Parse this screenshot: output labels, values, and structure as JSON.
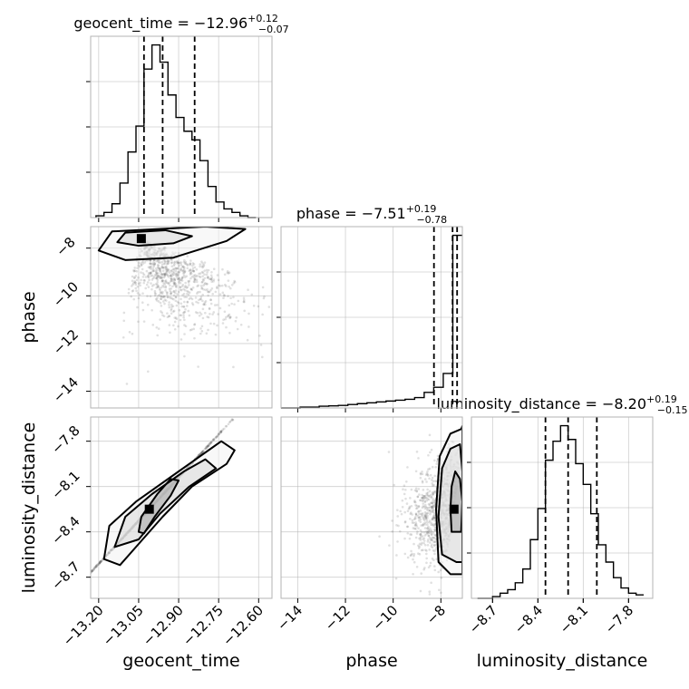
{
  "chart_data": {
    "type": "corner",
    "parameters": [
      {
        "name": "geocent_time",
        "title": {
          "prefix": "geocent_time = ",
          "value": "−12.96",
          "upper": "+0.12",
          "lower": "−0.07"
        },
        "range": [
          -13.23,
          -12.55
        ],
        "ticks": [
          -13.2,
          -13.05,
          -12.9,
          -12.75,
          -12.6
        ],
        "tick_labels": [
          "−13.20",
          "−13.05",
          "−12.90",
          "−12.75",
          "−12.60"
        ],
        "quantiles": [
          -13.03,
          -12.96,
          -12.84
        ],
        "hist": {
          "edges": [
            -13.21,
            -13.18,
            -13.15,
            -13.12,
            -13.09,
            -13.06,
            -13.03,
            -13.0,
            -12.97,
            -12.94,
            -12.91,
            -12.88,
            -12.85,
            -12.82,
            -12.79,
            -12.76,
            -12.73,
            -12.7,
            -12.67,
            -12.64,
            -12.61
          ],
          "heights": [
            0.01,
            0.03,
            0.08,
            0.2,
            0.38,
            0.53,
            0.86,
            1.0,
            0.9,
            0.71,
            0.58,
            0.5,
            0.45,
            0.33,
            0.18,
            0.09,
            0.05,
            0.03,
            0.01,
            0.0
          ]
        }
      },
      {
        "name": "phase",
        "title": {
          "prefix": "phase = ",
          "value": "−7.51",
          "upper": "+0.19",
          "lower": "−0.78"
        },
        "range": [
          -14.7,
          -7.1
        ],
        "ticks": [
          -14,
          -12,
          -10,
          -8
        ],
        "tick_labels": [
          "−14",
          "−12",
          "−10",
          "−8"
        ],
        "quantiles": [
          -8.29,
          -7.51,
          -7.32
        ],
        "hist": {
          "edges": [
            -14.7,
            -14.3,
            -13.9,
            -13.5,
            -13.1,
            -12.7,
            -12.3,
            -11.9,
            -11.5,
            -11.1,
            -10.7,
            -10.3,
            -9.9,
            -9.5,
            -9.1,
            -8.7,
            -8.3,
            -7.9,
            -7.5,
            -7.1
          ],
          "heights": [
            0.0,
            0.0,
            0.005,
            0.005,
            0.01,
            0.012,
            0.015,
            0.02,
            0.025,
            0.03,
            0.035,
            0.04,
            0.045,
            0.05,
            0.06,
            0.09,
            0.12,
            0.2,
            1.0
          ]
        }
      },
      {
        "name": "luminosity_distance",
        "title": {
          "prefix": "luminosity_distance = ",
          "value": "−8.20",
          "upper": "+0.19",
          "lower": "−0.15"
        },
        "range": [
          -8.84,
          -7.64
        ],
        "ticks": [
          -8.7,
          -8.4,
          -8.1,
          -7.8
        ],
        "tick_labels": [
          "−8.7",
          "−8.4",
          "−8.1",
          "−7.8"
        ],
        "quantiles": [
          -8.35,
          -8.2,
          -8.01
        ],
        "hist": {
          "edges": [
            -8.8,
            -8.75,
            -8.7,
            -8.65,
            -8.6,
            -8.55,
            -8.5,
            -8.45,
            -8.4,
            -8.35,
            -8.3,
            -8.25,
            -8.2,
            -8.15,
            -8.1,
            -8.05,
            -8.0,
            -7.95,
            -7.9,
            -7.85,
            -7.8,
            -7.75,
            -7.7
          ],
          "heights": [
            0.0,
            0.0,
            0.01,
            0.03,
            0.05,
            0.09,
            0.17,
            0.34,
            0.52,
            0.8,
            0.91,
            1.0,
            0.92,
            0.78,
            0.66,
            0.49,
            0.31,
            0.21,
            0.12,
            0.06,
            0.03,
            0.02
          ]
        }
      }
    ],
    "pairs": [
      {
        "x": "geocent_time",
        "y": "phase",
        "peak": [
          -13.04,
          -7.6
        ],
        "contours": [
          [
            [
              -13.13,
              -7.75
            ],
            [
              -13.1,
              -7.35
            ],
            [
              -12.95,
              -7.25
            ],
            [
              -12.85,
              -7.5
            ],
            [
              -12.92,
              -7.8
            ],
            [
              -13.05,
              -7.9
            ]
          ],
          [
            [
              -13.2,
              -8.1
            ],
            [
              -13.15,
              -7.3
            ],
            [
              -12.8,
              -7.1
            ],
            [
              -12.65,
              -7.2
            ],
            [
              -12.72,
              -7.7
            ],
            [
              -12.92,
              -8.4
            ],
            [
              -13.1,
              -8.5
            ]
          ]
        ]
      },
      {
        "x": "geocent_time",
        "y": "luminosity_distance",
        "peak": [
          -13.01,
          -8.25
        ],
        "contours": [
          [
            [
              -13.05,
              -8.4
            ],
            [
              -13.04,
              -8.3
            ],
            [
              -12.98,
              -8.15
            ],
            [
              -12.93,
              -8.05
            ],
            [
              -12.9,
              -8.06
            ],
            [
              -12.93,
              -8.16
            ],
            [
              -12.99,
              -8.3
            ],
            [
              -13.03,
              -8.41
            ]
          ],
          [
            [
              -13.14,
              -8.5
            ],
            [
              -13.1,
              -8.3
            ],
            [
              -13.0,
              -8.15
            ],
            [
              -12.88,
              -8.0
            ],
            [
              -12.8,
              -7.92
            ],
            [
              -12.76,
              -7.98
            ],
            [
              -12.86,
              -8.1
            ],
            [
              -12.97,
              -8.28
            ],
            [
              -13.05,
              -8.45
            ]
          ],
          [
            [
              -13.18,
              -8.58
            ],
            [
              -13.16,
              -8.36
            ],
            [
              -13.06,
              -8.2
            ],
            [
              -12.9,
              -8.0
            ],
            [
              -12.78,
              -7.85
            ],
            [
              -12.74,
              -7.8
            ],
            [
              -12.69,
              -7.86
            ],
            [
              -12.72,
              -7.95
            ],
            [
              -12.85,
              -8.1
            ],
            [
              -12.96,
              -8.3
            ],
            [
              -13.05,
              -8.48
            ],
            [
              -13.12,
              -8.62
            ]
          ]
        ]
      },
      {
        "x": "phase",
        "y": "luminosity_distance",
        "peak": [
          -7.45,
          -8.25
        ],
        "contours": [
          [
            [
              -7.55,
              -8.4
            ],
            [
              -7.6,
              -8.25
            ],
            [
              -7.55,
              -8.1
            ],
            [
              -7.4,
              -8.0
            ],
            [
              -7.2,
              -8.05
            ],
            [
              -7.1,
              -8.2
            ],
            [
              -7.15,
              -8.4
            ]
          ],
          [
            [
              -7.95,
              -8.55
            ],
            [
              -8.1,
              -8.3
            ],
            [
              -7.95,
              -7.98
            ],
            [
              -7.6,
              -7.85
            ],
            [
              -7.2,
              -7.82
            ],
            [
              -7.1,
              -8.0
            ],
            [
              -7.1,
              -8.6
            ],
            [
              -7.35,
              -8.6
            ]
          ],
          [
            [
              -8.1,
              -8.6
            ],
            [
              -8.2,
              -8.25
            ],
            [
              -8.05,
              -7.9
            ],
            [
              -7.6,
              -7.75
            ],
            [
              -7.15,
              -7.72
            ],
            [
              -7.1,
              -7.7
            ],
            [
              -7.1,
              -8.68
            ],
            [
              -7.6,
              -8.68
            ]
          ]
        ]
      }
    ],
    "grid": true
  }
}
